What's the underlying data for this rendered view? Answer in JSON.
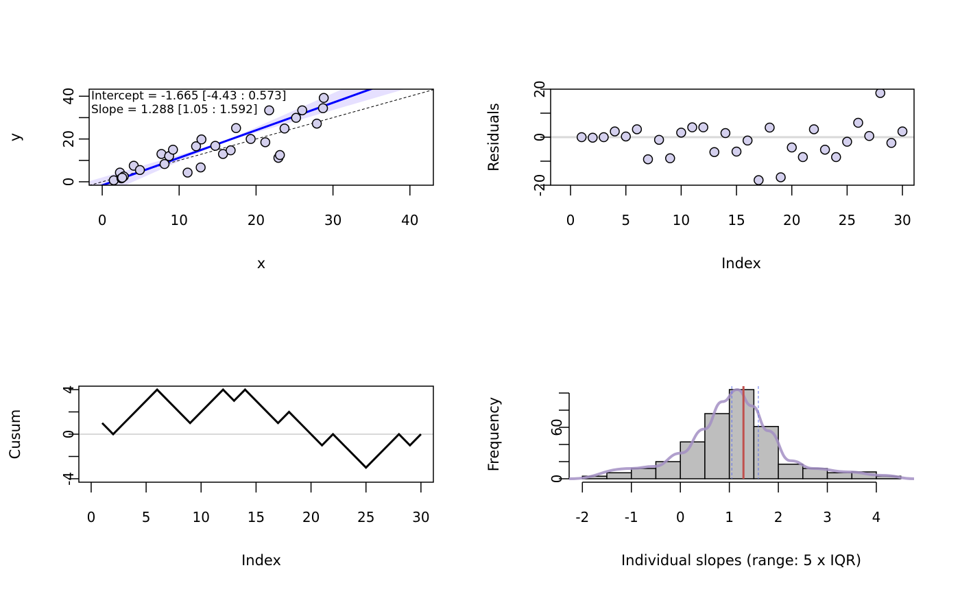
{
  "colors": {
    "point_fill": "#d4d0ee",
    "fit_line": "#0000ff",
    "band": "#e6e0ff",
    "zero_line": "#d9d9d9",
    "hist_bar": "#bebebe",
    "density": "#a38fc4",
    "median_line": "#c0504d",
    "ci_line": "#6070e8"
  },
  "chart_data": [
    {
      "type": "scatter",
      "xlabel": "x",
      "ylabel": "y",
      "xlim": [
        -1.7,
        43.05
      ],
      "ylim": [
        -1.6,
        43.3
      ],
      "xticks": [
        0,
        10,
        20,
        30,
        40
      ],
      "yticks": [
        0,
        10,
        20,
        30,
        40
      ],
      "yticklabels": [
        "0",
        "",
        "20",
        "",
        "40"
      ],
      "annotations": [
        "Intercept = -1.665 [-4.43 : 0.573]",
        "Slope = 1.288 [1.05 : 1.592]"
      ],
      "fit": {
        "intercept": -1.665,
        "slope": 1.288,
        "slope_low": 1.05,
        "slope_high": 1.592
      },
      "reference_line": "y = x (dashed)",
      "points": [
        [
          1.5,
          0.7
        ],
        [
          2.3,
          4.3
        ],
        [
          2.5,
          1.6
        ],
        [
          2.8,
          2.5
        ],
        [
          2.6,
          1.9
        ],
        [
          4.1,
          7.5
        ],
        [
          4.9,
          5.5
        ],
        [
          7.7,
          13.0
        ],
        [
          8.1,
          8.3
        ],
        [
          8.7,
          12.0
        ],
        [
          9.2,
          15.0
        ],
        [
          11.1,
          4.3
        ],
        [
          12.2,
          16.6
        ],
        [
          12.8,
          6.7
        ],
        [
          12.9,
          19.8
        ],
        [
          14.7,
          16.8
        ],
        [
          15.7,
          13.0
        ],
        [
          16.7,
          14.7
        ],
        [
          17.4,
          25.1
        ],
        [
          19.3,
          20.0
        ],
        [
          21.2,
          18.5
        ],
        [
          21.7,
          33.4
        ],
        [
          22.9,
          11.2
        ],
        [
          23.1,
          12.5
        ],
        [
          23.7,
          24.9
        ],
        [
          25.2,
          29.9
        ],
        [
          26.0,
          33.4
        ],
        [
          27.9,
          27.2
        ],
        [
          28.8,
          39.2
        ],
        [
          28.7,
          34.4
        ]
      ]
    },
    {
      "type": "scatter",
      "xlabel": "Index",
      "ylabel": "Residuals",
      "xlim": [
        -1.8,
        31.05
      ],
      "ylim": [
        -20,
        20
      ],
      "xticks": [
        0,
        5,
        10,
        15,
        20,
        25,
        30
      ],
      "yticks": [
        -20,
        -10,
        0,
        10,
        20
      ],
      "yticklabels": [
        "-20",
        "",
        "0",
        "",
        "20"
      ],
      "reference_line": 0,
      "values": [
        0,
        -0.2,
        0,
        2.4,
        0.3,
        3.3,
        -9.2,
        -1.1,
        -8.8,
        1.9,
        4.1,
        4.1,
        -6.2,
        1.7,
        -6.0,
        -1.4,
        -17.9,
        4.0,
        -16.7,
        -4.3,
        -8.3,
        3.3,
        -5.2,
        -8.3,
        -1.9,
        6.0,
        0.5,
        18.4,
        -2.4,
        2.4
      ]
    },
    {
      "type": "line",
      "xlabel": "Index",
      "ylabel": "Cusum",
      "xlim": [
        -1.12,
        31.13
      ],
      "ylim": [
        -4.31,
        4.31
      ],
      "xticks": [
        0,
        5,
        10,
        15,
        20,
        25,
        30
      ],
      "yticks": [
        -4,
        -2,
        0,
        2,
        4
      ],
      "yticklabels": [
        "-4",
        "",
        "0",
        "",
        "4"
      ],
      "reference_line": 0,
      "values": [
        1,
        0,
        1,
        2,
        3,
        4,
        3,
        2,
        1,
        2,
        3,
        4,
        3,
        4,
        3,
        2,
        1,
        2,
        1,
        0,
        -1,
        0,
        -1,
        -2,
        -3,
        -2,
        -1,
        0,
        -1,
        0
      ]
    },
    {
      "type": "bar",
      "xlabel": "Individual slopes (range: 5 x IQR)",
      "ylabel": "Frequency",
      "xlim": [
        -2.27,
        4.77
      ],
      "ylim": [
        0,
        104
      ],
      "xticks": [
        -2,
        -1,
        0,
        1,
        2,
        3,
        4
      ],
      "yticks": [
        0,
        20,
        40,
        60,
        80,
        100
      ],
      "yticklabels": [
        "0",
        "",
        "",
        "60",
        "",
        ""
      ],
      "bin_edges": [
        -2,
        -1.5,
        -1,
        -0.5,
        0,
        0.5,
        1,
        1.5,
        2,
        2.5,
        3,
        3.5,
        4,
        4.5
      ],
      "counts": [
        3,
        7,
        12,
        20,
        43,
        76,
        104,
        61,
        17,
        12,
        7,
        8,
        3
      ],
      "density_curve": [
        [
          -2.27,
          0
        ],
        [
          -1.0,
          12
        ],
        [
          -0.54,
          14.4
        ],
        [
          0.02,
          30
        ],
        [
          0.49,
          58
        ],
        [
          0.86,
          90
        ],
        [
          1.16,
          104
        ],
        [
          1.46,
          85
        ],
        [
          1.79,
          56
        ],
        [
          2.25,
          21
        ],
        [
          2.72,
          12
        ],
        [
          3.42,
          8
        ],
        [
          4.12,
          4
        ],
        [
          4.77,
          0
        ]
      ],
      "median": 1.288,
      "ci": [
        1.05,
        1.592
      ]
    }
  ]
}
